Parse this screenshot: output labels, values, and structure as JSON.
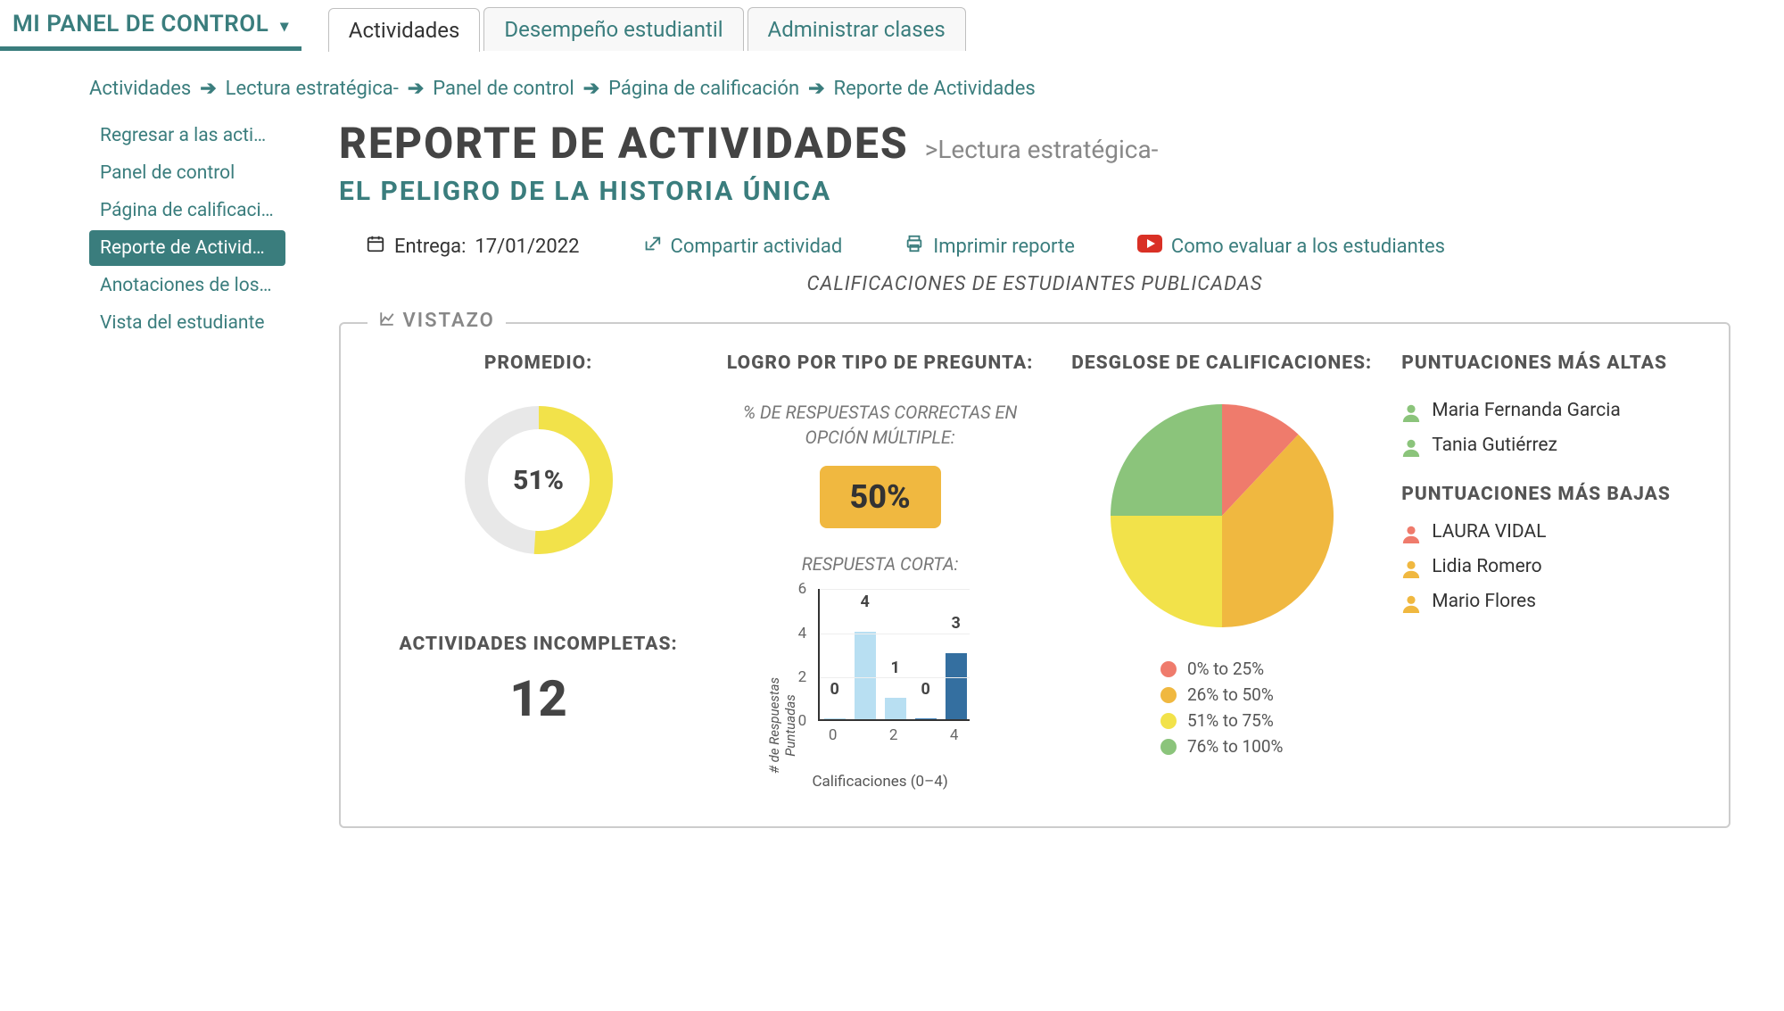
{
  "header": {
    "dashboard_label": "MI PANEL DE CONTROL",
    "tabs": [
      "Actividades",
      "Desempeño estudiantil",
      "Administrar clases"
    ],
    "active_tab": 0
  },
  "breadcrumb": [
    "Actividades",
    "Lectura estratégica-",
    "Panel de control",
    "Página de calificación",
    "Reporte de Actividades"
  ],
  "sidebar": {
    "items": [
      "Regresar a las activid…",
      "Panel de control",
      "Página de calificación",
      "Reporte de Actividades",
      "Anotaciones de los es…",
      "Vista del estudiante"
    ],
    "active_index": 3
  },
  "page": {
    "title": "REPORTE DE ACTIVIDADES",
    "subtitle": ">Lectura estratégica-",
    "activity_title": "EL PELIGRO DE LA HISTORIA ÚNICA",
    "due_label": "Entrega:",
    "due_date": "17/01/2022",
    "share_label": "Compartir actividad",
    "print_label": "Imprimir reporte",
    "help_label": "Como evaluar a los estudiantes",
    "status_line": "CALIFICACIONES DE ESTUDIANTES PUBLICADAS"
  },
  "vistazo": {
    "legend_label": "VISTAZO",
    "promedio": {
      "heading": "PROMEDIO:",
      "value": 51,
      "value_label": "51%",
      "ring_fg": "#f2e24a",
      "ring_bg": "#e8e8e8"
    },
    "incomplete": {
      "heading": "ACTIVIDADES INCOMPLETAS:",
      "value": "12"
    },
    "logro": {
      "heading": "LOGRO POR TIPO DE PREGUNTA:",
      "mc_desc": "% DE RESPUESTAS CORRECTAS EN OPCIÓN MÚLTIPLE:",
      "mc_value": "50%",
      "mc_bg": "#f0b840",
      "sr_label": "RESPUESTA CORTA:",
      "bar_chart": {
        "y_label": "# de Respuestas Puntuadas",
        "x_label": "Calificaciones (0–4)",
        "ymax": 6,
        "ytick_step": 2,
        "x_ticks": [
          "0",
          "2",
          "4"
        ],
        "bars": [
          {
            "x": 0,
            "value": 0,
            "color": "#b8dff2"
          },
          {
            "x": 1,
            "value": 4,
            "color": "#b8dff2"
          },
          {
            "x": 2,
            "value": 1,
            "color": "#b8dff2"
          },
          {
            "x": 3,
            "value": 0,
            "color": "#4a8bc2"
          },
          {
            "x": 4,
            "value": 3,
            "color": "#346fa0"
          }
        ]
      }
    },
    "breakdown": {
      "heading": "DESGLOSE DE CALIFICACIONES:",
      "slices": [
        {
          "label": "0% to 25%",
          "pct": 12,
          "color": "#ef7b6c"
        },
        {
          "label": "26% to 50%",
          "pct": 38,
          "color": "#f0b840"
        },
        {
          "label": "51% to 75%",
          "pct": 25,
          "color": "#f2e24a"
        },
        {
          "label": "76% to 100%",
          "pct": 25,
          "color": "#8bc47b"
        }
      ]
    },
    "scores": {
      "high_heading": "PUNTUACIONES MÁS ALTAS",
      "high": [
        {
          "name": "Maria Fernanda Garcia",
          "color": "#8bc47b"
        },
        {
          "name": "Tania Gutiérrez",
          "color": "#8bc47b"
        }
      ],
      "low_heading": "PUNTUACIONES MÁS BAJAS",
      "low": [
        {
          "name": "LAURA VIDAL",
          "color": "#ef7b6c"
        },
        {
          "name": "Lidia Romero",
          "color": "#f0b840"
        },
        {
          "name": "Mario Flores",
          "color": "#f0b840"
        }
      ]
    }
  },
  "colors": {
    "teal": "#3a7d7d",
    "red_youtube": "#d93025"
  }
}
